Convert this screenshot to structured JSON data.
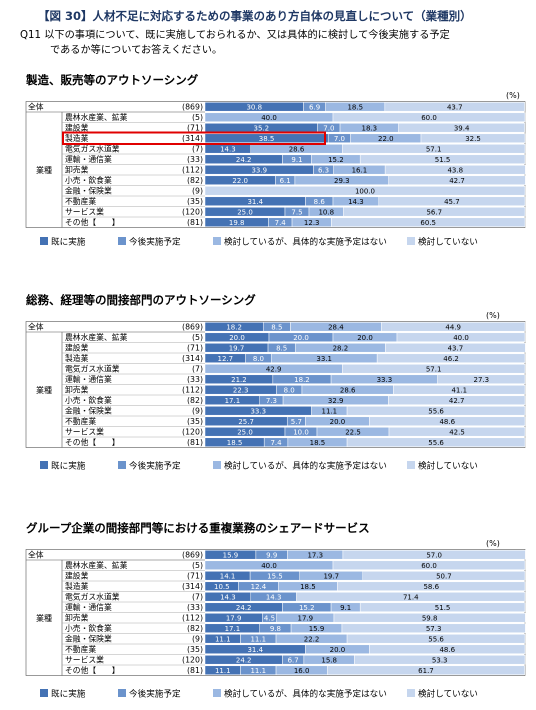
{
  "header": {
    "title": "【図 30】人材不足に対応するための事業のあり方自体の見直しについて（業種別）",
    "question_line1": "Q11 以下の事項について、既に実施しておられるか、又は具体的に検討して今後実施する予定",
    "question_line2": "であるか等についてお答えください。"
  },
  "colors": {
    "s1": "#4472b4",
    "s2": "#6b93cc",
    "s3": "#9bb8e2",
    "s4": "#c6d6ee",
    "highlight": "#e00000"
  },
  "chart_data": [
    {
      "type": "bar",
      "title": "製造、販売等のアウトソーシング",
      "unit": "(%)",
      "group_label": "業種",
      "total_label": "全体",
      "categories": [
        "全体",
        "農林水産業、鉱業",
        "建設業",
        "製造業",
        "電気ガス水道業",
        "運輸・通信業",
        "卸売業",
        "小売・飲食業",
        "金融・保険業",
        "不動産業",
        "サービス業",
        "その他【　　】"
      ],
      "n": [
        "(869)",
        "(5)",
        "(71)",
        "(314)",
        "(7)",
        "(33)",
        "(112)",
        "(82)",
        "(9)",
        "(35)",
        "(120)",
        "(81)"
      ],
      "highlight_index": 3,
      "series": [
        {
          "name": "既に実施",
          "values": [
            30.8,
            0,
            35.2,
            38.5,
            14.3,
            24.2,
            33.9,
            22.0,
            0,
            31.4,
            25.0,
            19.8
          ]
        },
        {
          "name": "今後実施予定",
          "values": [
            6.9,
            0,
            7.0,
            7.0,
            0,
            9.1,
            6.3,
            6.1,
            0,
            8.6,
            7.5,
            7.4
          ]
        },
        {
          "name": "検討しているが、具体的な実施予定はない",
          "values": [
            18.5,
            40.0,
            18.3,
            22.0,
            28.6,
            15.2,
            16.1,
            29.3,
            0,
            14.3,
            10.8,
            12.3
          ]
        },
        {
          "name": "検討していない",
          "values": [
            43.7,
            60.0,
            39.4,
            32.5,
            57.1,
            51.5,
            43.8,
            42.7,
            100.0,
            45.7,
            56.7,
            60.5
          ]
        }
      ]
    },
    {
      "type": "bar",
      "title": "総務、経理等の間接部門のアウトソーシング",
      "unit": "(%)",
      "group_label": "業種",
      "total_label": "全体",
      "categories": [
        "全体",
        "農林水産業、鉱業",
        "建設業",
        "製造業",
        "電気ガス水道業",
        "運輸・通信業",
        "卸売業",
        "小売・飲食業",
        "金融・保険業",
        "不動産業",
        "サービス業",
        "その他【　　】"
      ],
      "n": [
        "(869)",
        "(5)",
        "(71)",
        "(314)",
        "(7)",
        "(33)",
        "(112)",
        "(82)",
        "(9)",
        "(35)",
        "(120)",
        "(81)"
      ],
      "series": [
        {
          "name": "既に実施",
          "values": [
            18.2,
            20.0,
            19.7,
            12.7,
            0,
            21.2,
            22.3,
            17.1,
            33.3,
            25.7,
            25.0,
            18.5
          ]
        },
        {
          "name": "今後実施予定",
          "values": [
            8.5,
            20.0,
            8.5,
            8.0,
            0,
            18.2,
            8.0,
            7.3,
            0,
            5.7,
            10.0,
            7.4
          ]
        },
        {
          "name": "検討しているが、具体的な実施予定はない",
          "values": [
            28.4,
            20.0,
            28.2,
            33.1,
            42.9,
            33.3,
            28.6,
            32.9,
            11.1,
            20.0,
            22.5,
            18.5
          ]
        },
        {
          "name": "検討していない",
          "values": [
            44.9,
            40.0,
            43.7,
            46.2,
            57.1,
            27.3,
            41.1,
            42.7,
            55.6,
            48.6,
            42.5,
            55.6
          ]
        }
      ]
    },
    {
      "type": "bar",
      "title": "グループ企業の間接部門等における重複業務のシェアードサービス",
      "unit": "(%)",
      "group_label": "業種",
      "total_label": "全体",
      "categories": [
        "全体",
        "農林水産業、鉱業",
        "建設業",
        "製造業",
        "電気ガス水道業",
        "運輸・通信業",
        "卸売業",
        "小売・飲食業",
        "金融・保険業",
        "不動産業",
        "サービス業",
        "その他【　　】"
      ],
      "n": [
        "(869)",
        "(5)",
        "(71)",
        "(314)",
        "(7)",
        "(33)",
        "(112)",
        "(82)",
        "(9)",
        "(35)",
        "(120)",
        "(81)"
      ],
      "series": [
        {
          "name": "既に実施",
          "values": [
            15.9,
            0,
            14.1,
            10.5,
            14.3,
            24.2,
            17.9,
            17.1,
            11.1,
            31.4,
            24.2,
            11.1
          ]
        },
        {
          "name": "今後実施予定",
          "values": [
            9.9,
            0,
            15.5,
            12.4,
            14.3,
            15.2,
            4.5,
            9.8,
            11.1,
            0,
            6.7,
            11.1
          ]
        },
        {
          "name": "検討しているが、具体的な実施予定はない",
          "values": [
            17.3,
            40.0,
            19.7,
            18.5,
            0,
            9.1,
            17.9,
            15.9,
            22.2,
            20.0,
            15.8,
            16.0
          ]
        },
        {
          "name": "検討していない",
          "values": [
            57.0,
            60.0,
            50.7,
            58.6,
            71.4,
            51.5,
            59.8,
            57.3,
            55.6,
            48.6,
            53.3,
            61.7
          ]
        }
      ]
    }
  ]
}
